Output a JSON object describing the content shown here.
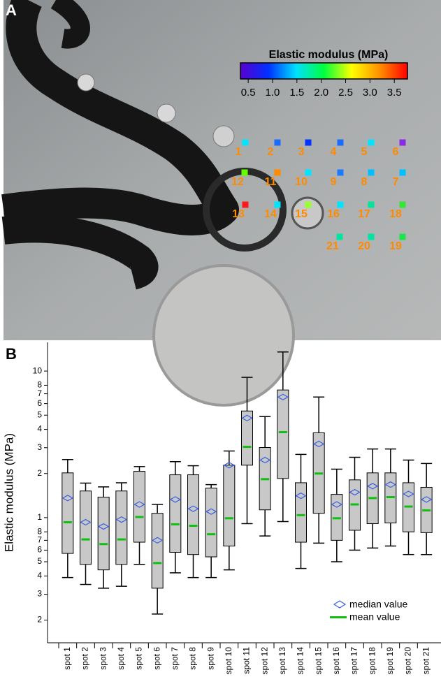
{
  "chart_data": [
    {
      "type": "spot-map",
      "panel_label": "A",
      "colorbar": {
        "title": "Elastic modulus (MPa)",
        "colors": [
          "#5a00d0",
          "#0030ff",
          "#00e0ff",
          "#00ff40",
          "#ffff00",
          "#ff9000",
          "#ff0000"
        ],
        "xlim": [
          0.34,
          3.77
        ],
        "xticks": [
          0.5,
          {
            "value": 1,
            "label": "1.0"
          },
          1.5,
          {
            "value": 2,
            "label": "2.0"
          },
          2.5,
          {
            "value": 3,
            "label": "3.0"
          },
          3.5
        ]
      },
      "spots": [
        {
          "label": "1",
          "color": "#00e5ff"
        },
        {
          "label": "2",
          "color": "#1a6cff"
        },
        {
          "label": "3",
          "color": "#0033ff"
        },
        {
          "label": "4",
          "color": "#1a6cff"
        },
        {
          "label": "5",
          "color": "#00e5ff"
        },
        {
          "label": "6",
          "color": "#8a2be2"
        },
        {
          "label": "7",
          "color": "#00bfff"
        },
        {
          "label": "8",
          "color": "#00bfff"
        },
        {
          "label": "9",
          "color": "#1a7aff"
        },
        {
          "label": "10",
          "color": "#00e5ff"
        },
        {
          "label": "11",
          "color": "#ff8c00"
        },
        {
          "label": "12",
          "color": "#66ff00"
        },
        {
          "label": "13",
          "color": "#ff1a1a"
        },
        {
          "label": "14",
          "color": "#00e5ff"
        },
        {
          "label": "15",
          "color": "#99ff33"
        },
        {
          "label": "16",
          "color": "#00e5ff"
        },
        {
          "label": "17",
          "color": "#00e599"
        },
        {
          "label": "18",
          "color": "#33e633"
        },
        {
          "label": "19",
          "color": "#19e64d"
        },
        {
          "label": "20",
          "color": "#00e5a0"
        },
        {
          "label": "21",
          "color": "#00e5a0"
        }
      ]
    },
    {
      "type": "box",
      "panel_label": "B",
      "ylabel": "Elastic modulus (MPa)",
      "log_scale": true,
      "categories": [
        "spot 1",
        "spot 2",
        "spot 3",
        "spot 4",
        "spot 5",
        "spot 6",
        "spot 7",
        "spot 8",
        "spot 9",
        "spot 10",
        "spot 11",
        "spot 12",
        "spot 13",
        "spot 14",
        "spot 15",
        "spot 16",
        "spot 17",
        "spot 18",
        "spot 19",
        "spot 20",
        "spot 21"
      ],
      "ylim": [
        0.14,
        15.7
      ],
      "yticks": [
        {
          "value": 0.2,
          "label": "2"
        },
        {
          "value": 0.3,
          "label": "3"
        },
        {
          "value": 0.4,
          "label": "4"
        },
        {
          "value": 0.5,
          "label": "5"
        },
        {
          "value": 0.6,
          "label": "6"
        },
        {
          "value": 0.7,
          "label": "7"
        },
        {
          "value": 0.8,
          "label": "8"
        },
        1,
        2,
        3,
        4,
        5,
        6,
        7,
        8,
        10
      ],
      "whisker_high": [
        2.49,
        1.72,
        1.62,
        1.73,
        2.23,
        1.23,
        2.41,
        2.26,
        1.68,
        2.85,
        9.06,
        4.89,
        13.5,
        2.7,
        6.65,
        2.14,
        2.58,
        2.94,
        2.94,
        2.47,
        2.34
      ],
      "q3": [
        2.02,
        1.52,
        1.38,
        1.52,
        2.07,
        1.07,
        1.96,
        1.96,
        1.59,
        2.28,
        5.34,
        3.01,
        7.43,
        1.73,
        3.79,
        1.44,
        1.81,
        2.02,
        2.02,
        1.73,
        1.61
      ],
      "q1": [
        0.57,
        0.48,
        0.44,
        0.48,
        0.68,
        0.33,
        0.58,
        0.56,
        0.54,
        0.64,
        2.28,
        1.13,
        1.85,
        0.68,
        1.07,
        0.7,
        0.82,
        0.91,
        0.92,
        0.8,
        0.79
      ],
      "whisker_low": [
        0.39,
        0.35,
        0.33,
        0.34,
        0.48,
        0.22,
        0.42,
        0.39,
        0.39,
        0.44,
        0.91,
        0.75,
        0.94,
        0.45,
        0.67,
        0.5,
        0.6,
        0.62,
        0.64,
        0.56,
        0.56
      ],
      "box_color": "#c8c8c8",
      "series": [
        {
          "name": "median value",
          "color": "#3a5fe0",
          "values": [
            1.36,
            0.93,
            0.87,
            0.97,
            1.23,
            0.7,
            1.33,
            1.15,
            1.1,
            2.28,
            4.78,
            2.47,
            6.65,
            1.41,
            3.18,
            1.23,
            1.49,
            1.64,
            1.68,
            1.45,
            1.33
          ]
        },
        {
          "name": "mean value",
          "color": "#10c010",
          "values": [
            0.93,
            0.71,
            0.66,
            0.71,
            1.01,
            0.49,
            0.9,
            0.88,
            0.77,
            0.99,
            3.04,
            1.83,
            3.83,
            1.04,
            2.0,
            0.99,
            1.23,
            1.36,
            1.38,
            1.19,
            1.12
          ]
        }
      ]
    }
  ]
}
